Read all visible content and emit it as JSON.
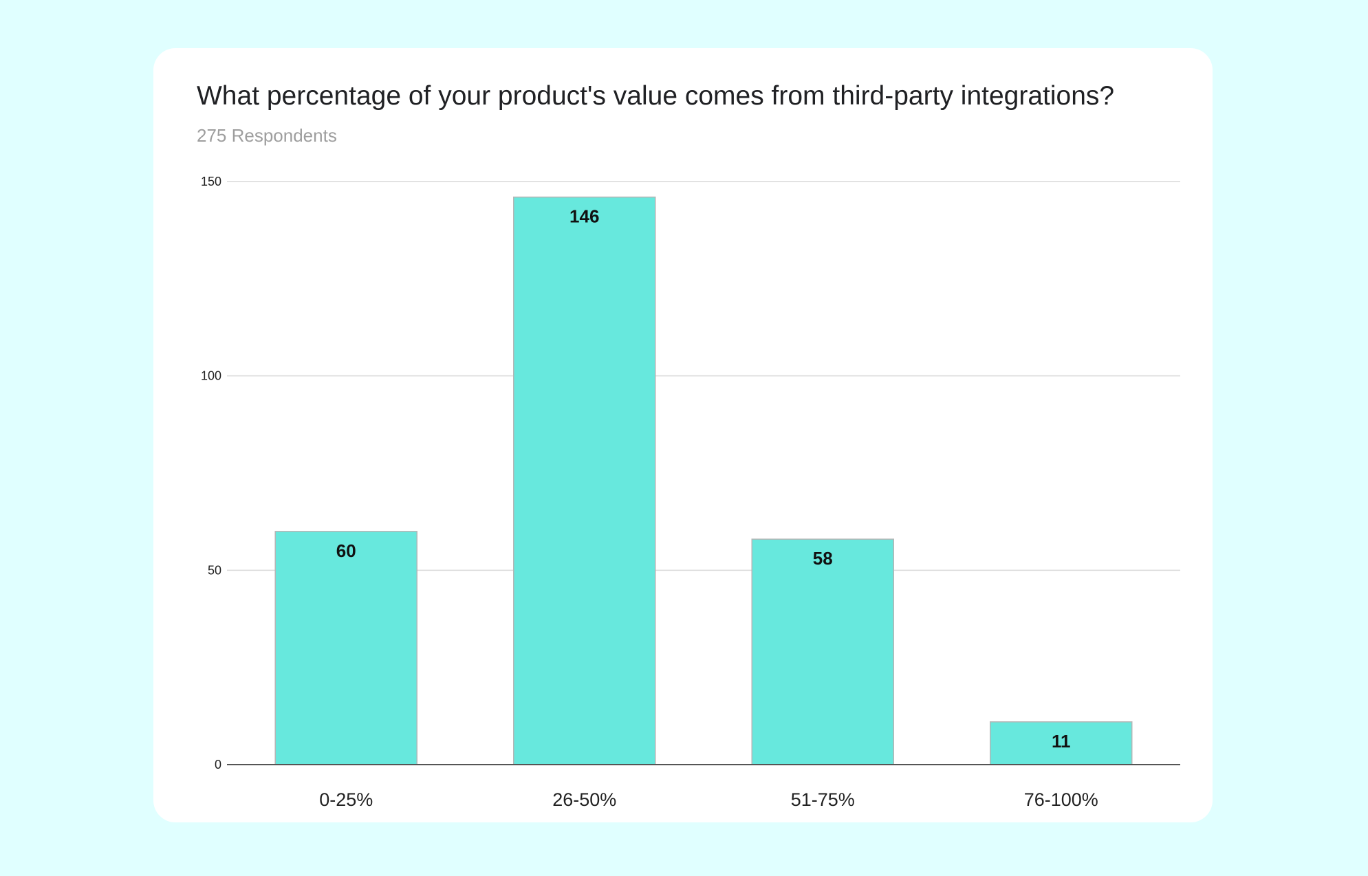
{
  "colors": {
    "page_background": "#e0ffff",
    "card_background": "#ffffff",
    "bar_fill": "#67e8dd",
    "bar_stroke": "#b5b5b5",
    "gridline": "#d9d9d9",
    "baseline": "#555555"
  },
  "chart_data": {
    "type": "bar",
    "title": "What percentage of your product's value comes from third-party integrations?",
    "subtitle": "275 Respondents",
    "categories": [
      "0-25%",
      "26-50%",
      "51-75%",
      "76-100%"
    ],
    "values": [
      60,
      146,
      58,
      11
    ],
    "data_labels": [
      "60",
      "146",
      "58",
      "11"
    ],
    "yticks": [
      0,
      50,
      100,
      150
    ],
    "ytick_labels": [
      "0",
      "50",
      "100",
      "150"
    ],
    "ylim": [
      0,
      150
    ],
    "xlabel": "",
    "ylabel": "",
    "grid": true,
    "legend": "none"
  }
}
